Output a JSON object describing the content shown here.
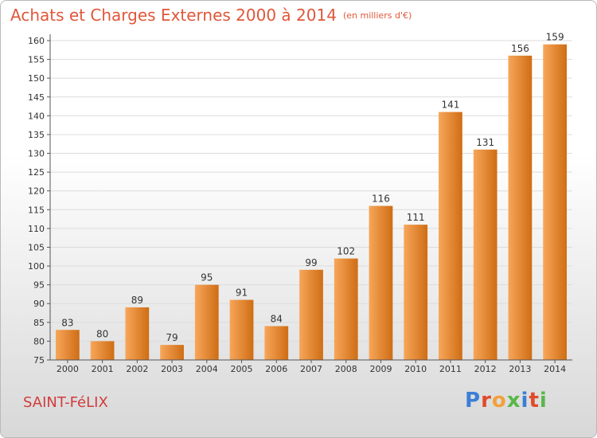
{
  "page": {
    "title": "Achats et Charges Externes 2000 à 2014",
    "subtitle": "(en milliers d'€)",
    "location": "SAINT-FéLIX",
    "logo": "Proxiti",
    "logo_colors": [
      "#3a7fd5",
      "#e04b2a",
      "#f2a13a",
      "#58b848",
      "#3a7fd5",
      "#e04b2a",
      "#58b848"
    ]
  },
  "chart_data": {
    "type": "bar",
    "categories": [
      "2000",
      "2001",
      "2002",
      "2003",
      "2004",
      "2005",
      "2006",
      "2007",
      "2008",
      "2009",
      "2010",
      "2011",
      "2012",
      "2013",
      "2014"
    ],
    "values": [
      83,
      80,
      89,
      79,
      95,
      91,
      84,
      99,
      102,
      116,
      111,
      141,
      131,
      156,
      159
    ],
    "title": "Achats et Charges Externes 2000 à 2014",
    "subtitle": "(en milliers d'€)",
    "ylim": [
      75,
      160
    ],
    "ytick_step": 5,
    "grid": true,
    "bar_color_light": "#f7a65a",
    "bar_color_dark": "#cf6d14"
  }
}
